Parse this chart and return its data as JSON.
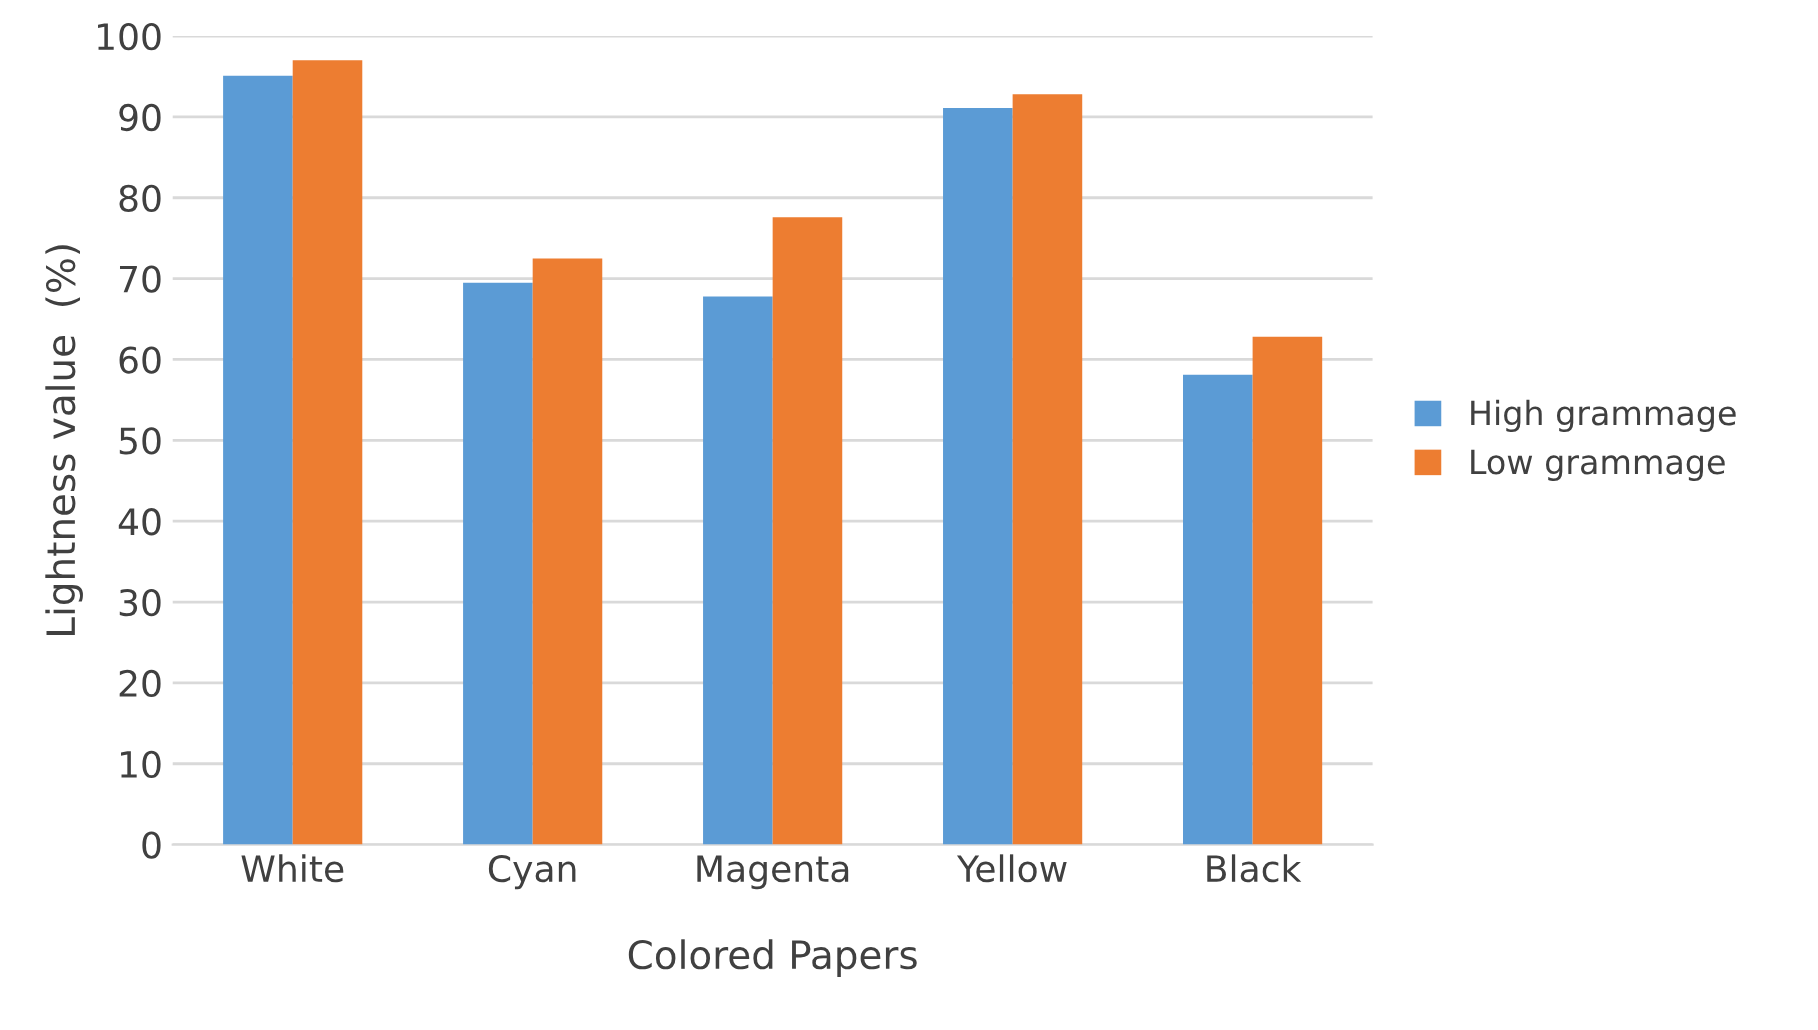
{
  "chart_data": {
    "type": "bar",
    "xlabel": "Colored Papers",
    "ylabel": "Lightness value  (%)",
    "categories": [
      "White",
      "Cyan",
      "Magenta",
      "Yellow",
      "Black"
    ],
    "series": [
      {
        "name": "High grammage",
        "color": "#5b9bd5",
        "values": [
          95.1,
          69.5,
          67.8,
          91.1,
          58.1
        ]
      },
      {
        "name": "Low grammage",
        "color": "#ed7d31",
        "values": [
          97.0,
          72.5,
          77.6,
          92.8,
          62.8
        ]
      }
    ],
    "ylim": [
      0,
      100
    ],
    "yticks": [
      0,
      10,
      20,
      30,
      40,
      50,
      60,
      70,
      80,
      90,
      100
    ],
    "grid": "y",
    "legend": "right"
  }
}
